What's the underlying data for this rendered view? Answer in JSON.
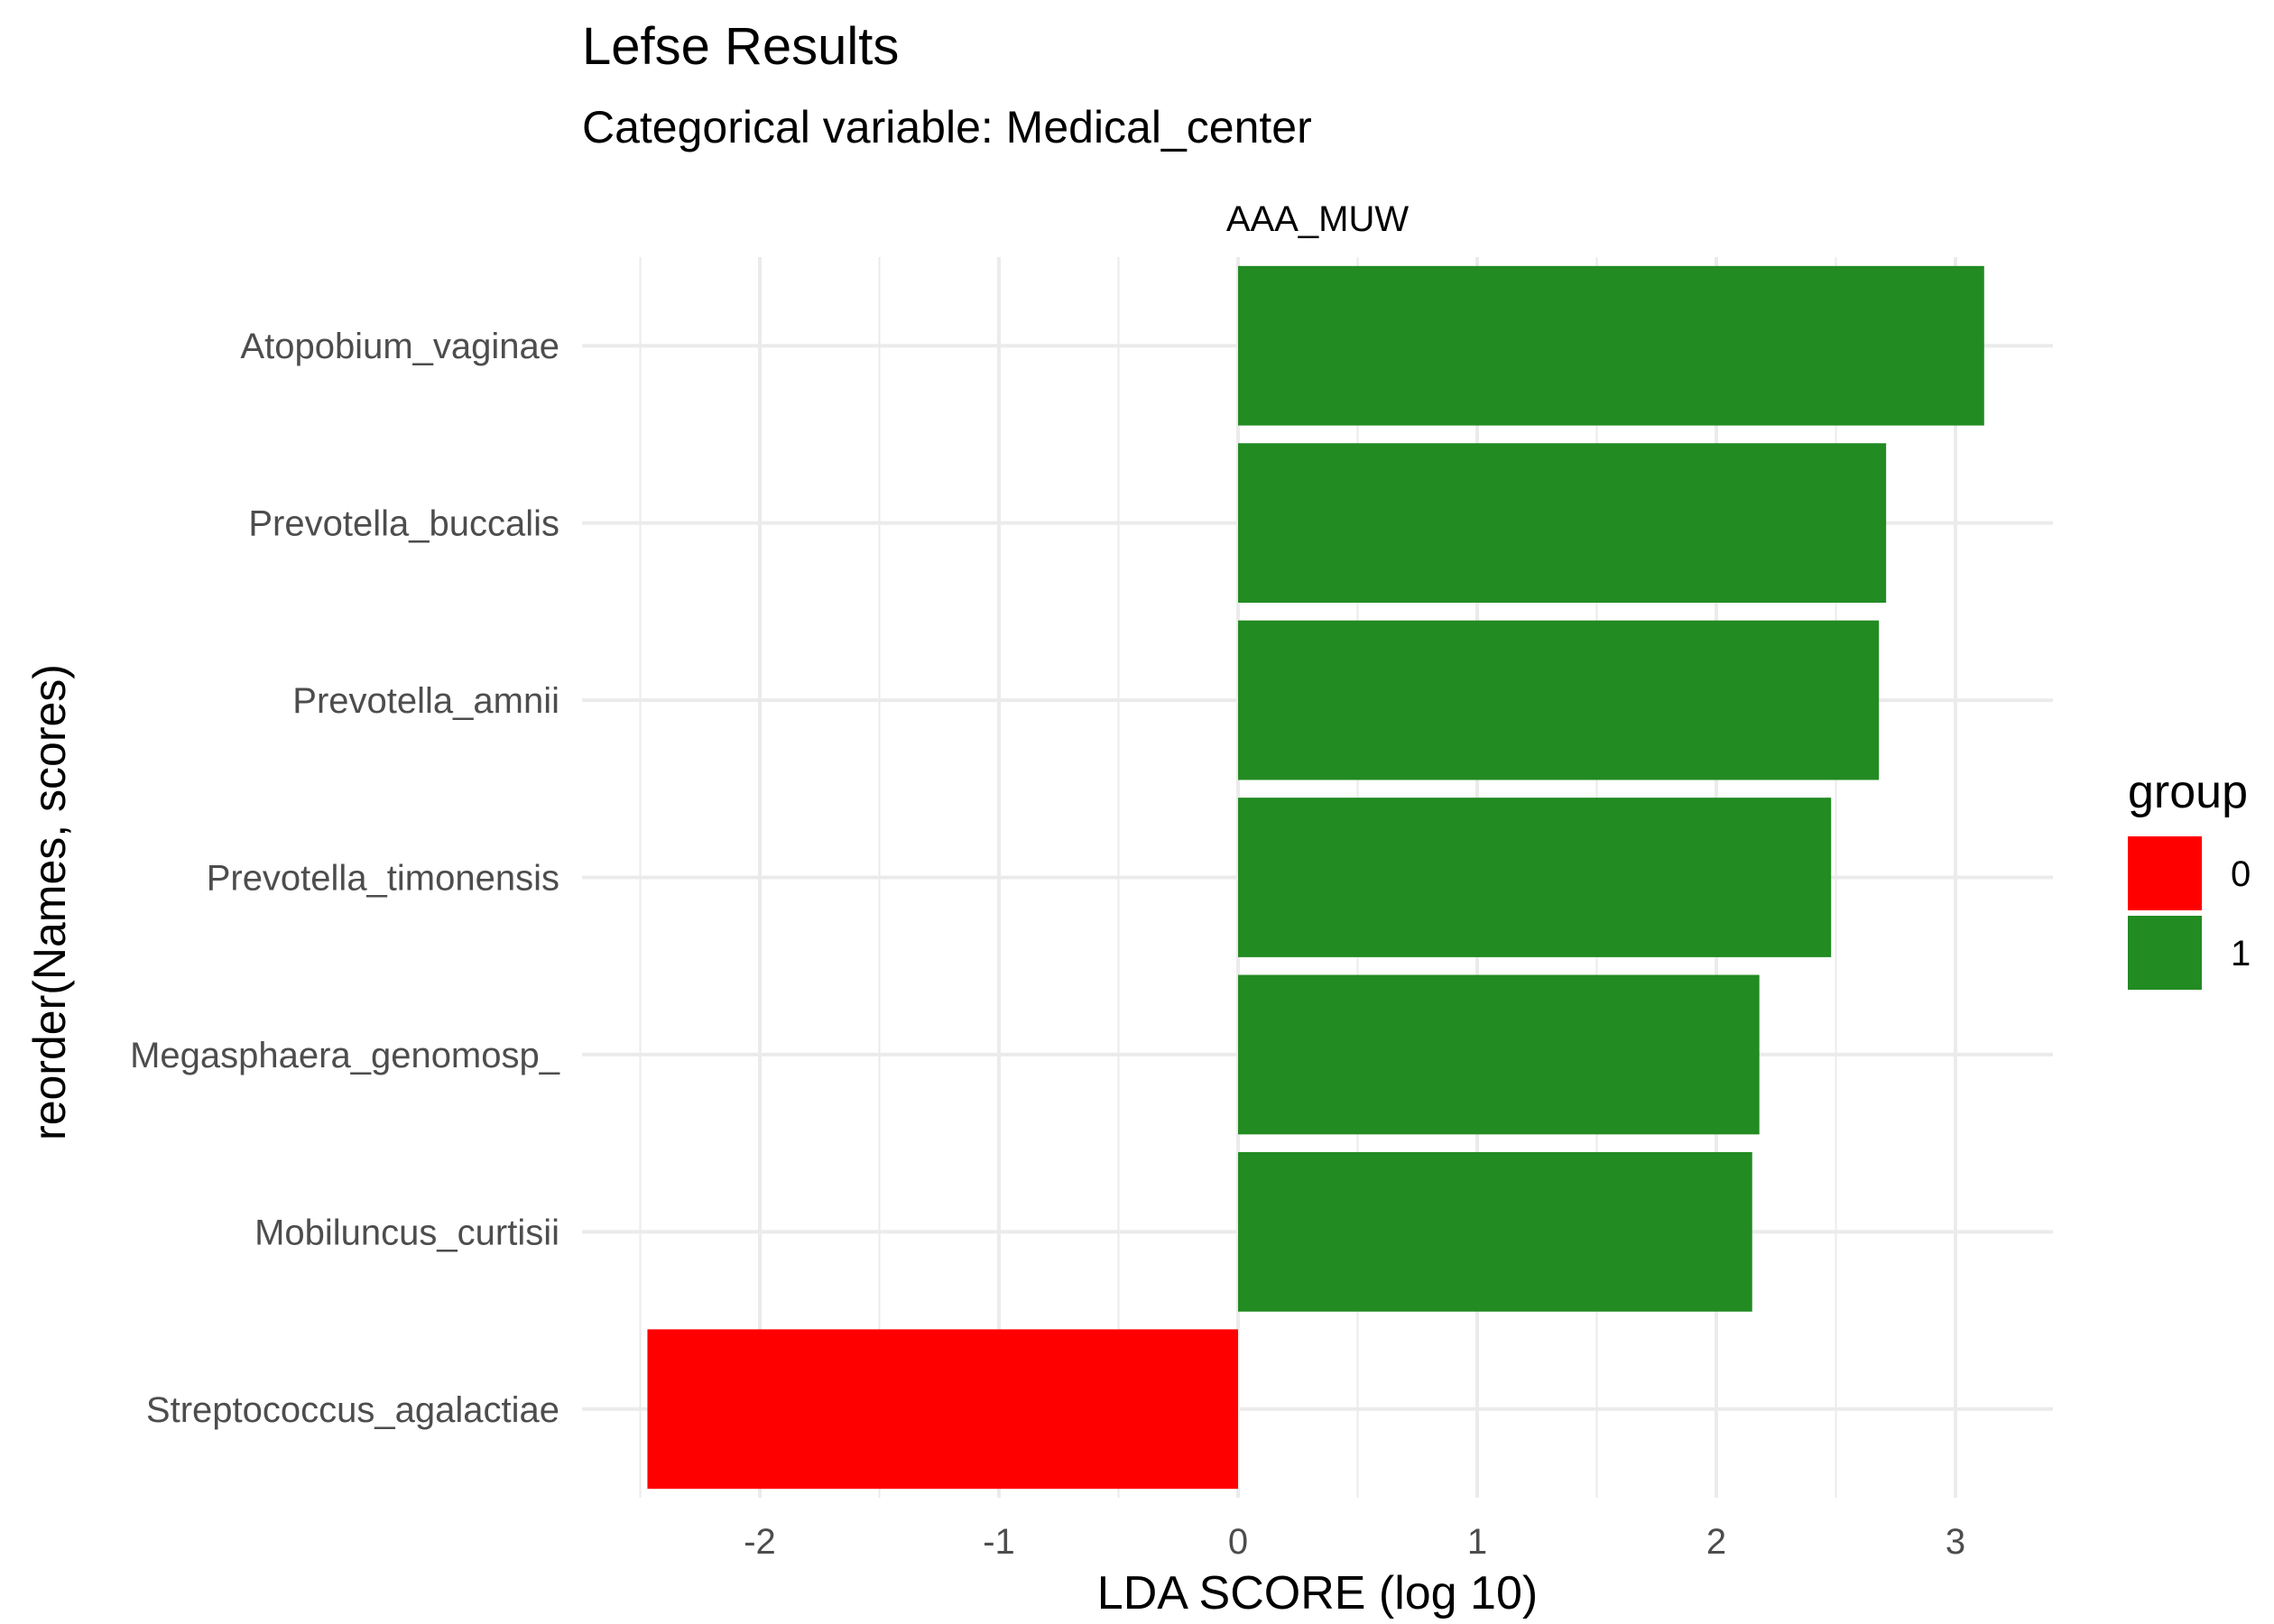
{
  "chart_data": {
    "type": "bar",
    "orientation": "horizontal",
    "title": "Lefse Results",
    "subtitle": "Categorical variable: Medical_center",
    "facet_label": "AAA_MUW",
    "xlabel": "LDA SCORE (log 10)",
    "ylabel": "reorder(Names, scores)",
    "xlim": [
      -2.5,
      3.4
    ],
    "x_ticks": [
      "-2",
      "-1",
      "0",
      "1",
      "2",
      "3"
    ],
    "x_tick_values": [
      -2,
      -1,
      0,
      1,
      2,
      3
    ],
    "grid": true,
    "legend": {
      "title": "group",
      "position": "right",
      "items": [
        {
          "label": "0",
          "color": "#ff0000"
        },
        {
          "label": "1",
          "color": "#228b22"
        }
      ]
    },
    "categories": [
      "Atopobium_vaginae",
      "Prevotella_buccalis",
      "Prevotella_amnii",
      "Prevotella_timonensis",
      "Megasphaera_genomosp_",
      "Mobiluncus_curtisii",
      "Streptococcus_agalactiae"
    ],
    "values": [
      3.12,
      2.71,
      2.68,
      2.48,
      2.18,
      2.15,
      -2.47
    ],
    "groups": [
      "1",
      "1",
      "1",
      "1",
      "1",
      "1",
      "0"
    ],
    "colors": {
      "0": "#ff0000",
      "1": "#228b22"
    }
  }
}
